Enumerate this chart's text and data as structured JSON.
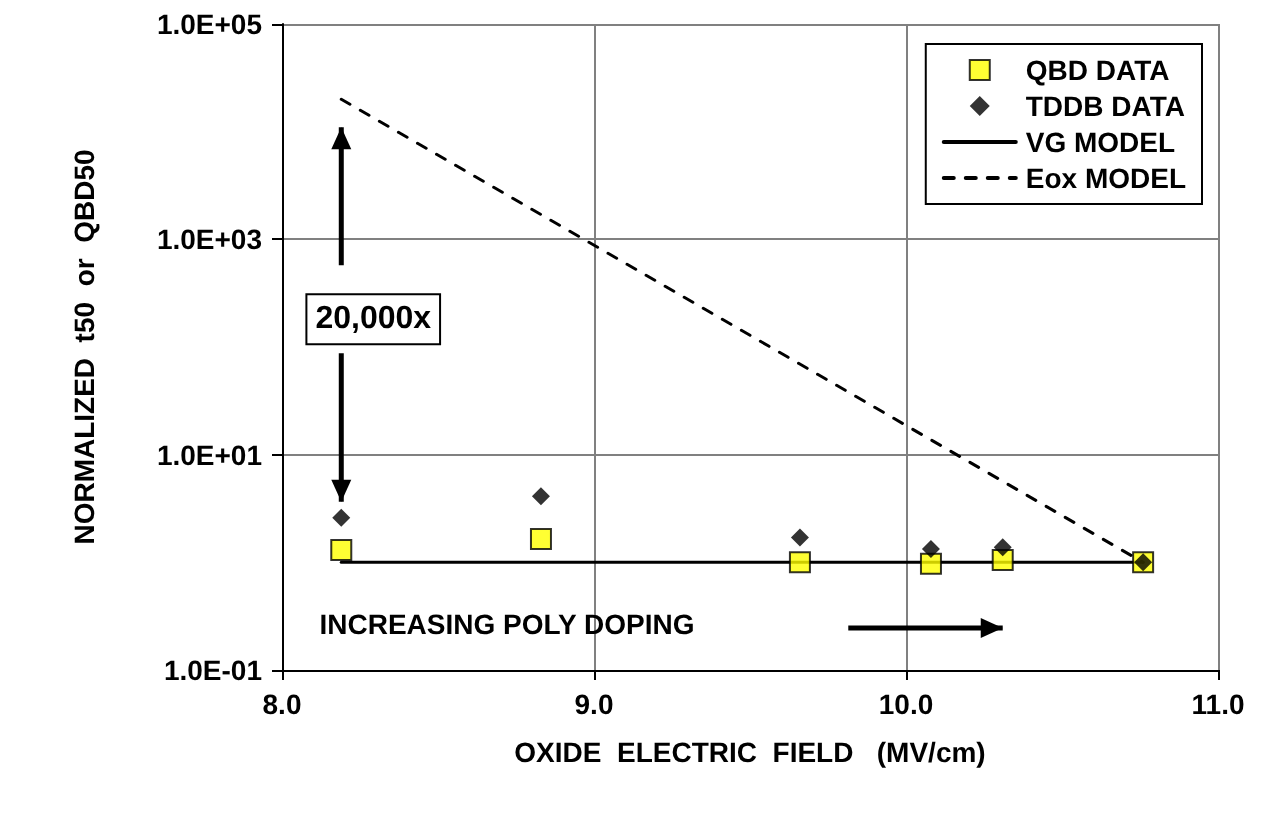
{
  "chart_data": {
    "type": "scatter",
    "xlabel": "OXIDE  ELECTRIC  FIELD   (MV/cm)",
    "ylabel": "NORMALIZED  t50  or  QBD50",
    "series": [
      {
        "name": "QBD DATA",
        "color": "#ffff00",
        "marker": "square",
        "x": [
          8.19,
          8.83,
          9.66,
          10.08,
          10.31,
          10.76
        ],
        "values": [
          1.3,
          1.65,
          1.0,
          0.97,
          1.05,
          1.0
        ]
      },
      {
        "name": "TDDB DATA",
        "color": "#000000",
        "marker": "diamond",
        "x": [
          8.19,
          8.83,
          9.66,
          10.08,
          10.31,
          10.76
        ],
        "values": [
          2.6,
          4.1,
          1.7,
          1.33,
          1.38,
          1.0
        ]
      },
      {
        "name": "VG MODEL",
        "type": "line",
        "color": "#000000",
        "marker": "none",
        "line_style": "solid",
        "x": [
          8.19,
          10.76
        ],
        "values": [
          1.0,
          1.0
        ]
      },
      {
        "name": "Eox MODEL",
        "type": "line",
        "color": "#000000",
        "marker": "none",
        "line_style": "dashed",
        "x": [
          8.19,
          10.76
        ],
        "values": [
          20000,
          1.0
        ]
      }
    ],
    "xlim": [
      8,
      11
    ],
    "xticks": [
      {
        "value": 8,
        "label": "8.0"
      },
      {
        "value": 9,
        "label": "9.0"
      },
      {
        "value": 10,
        "label": "10.0"
      },
      {
        "value": 11,
        "label": "11.0"
      }
    ],
    "ylim": [
      0.1,
      100000
    ],
    "yticks": [
      {
        "value": 0.1,
        "label": "1.0E-01"
      },
      {
        "value": 10,
        "label": "1.0E+01"
      },
      {
        "value": 1000,
        "label": "1.0E+03"
      },
      {
        "value": 100000,
        "label": "1.0E+05"
      }
    ],
    "log": "y",
    "grid": true,
    "legend": "top right",
    "annotations": [
      {
        "text": "20,000x",
        "x": 8.19,
        "y": 2.6
      },
      "INCREASING POLY DOPING"
    ]
  }
}
